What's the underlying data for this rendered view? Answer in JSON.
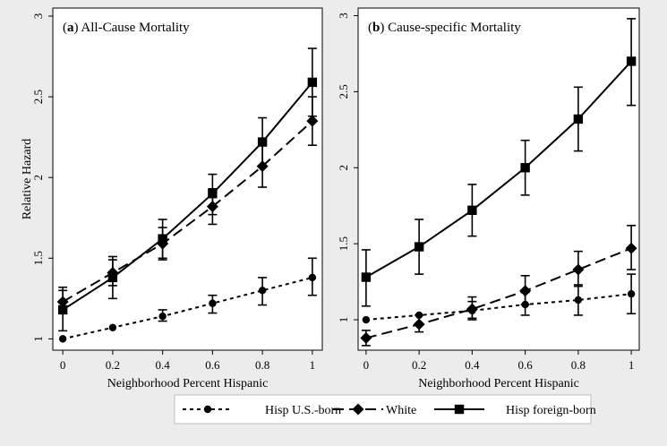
{
  "y_label": "Relative Hazard",
  "colors": {
    "page_bg": "#ececec",
    "plot_bg": "#ffffff",
    "ink": "#000000"
  },
  "legend": [
    {
      "label": "Hisp U.S.-born",
      "marker": "circle",
      "dash": "short-dash"
    },
    {
      "label": "White",
      "marker": "diamond",
      "dash": "long-dash"
    },
    {
      "label": "Hisp foreign-born",
      "marker": "square",
      "dash": "solid"
    }
  ],
  "chart_data": [
    {
      "type": "line",
      "title": "(a) All-Cause Mortality",
      "title_bold_part": "a",
      "xlabel": "Neighborhood Percent Hispanic",
      "ylabel": "Relative Hazard",
      "x": [
        0,
        0.2,
        0.4,
        0.6,
        0.8,
        1
      ],
      "x_ticks": [
        "0",
        "0.2",
        "0.4",
        "0.6",
        "0.8",
        "1"
      ],
      "y_ticks": [
        "1",
        "1.5",
        "2",
        "2.5",
        "3"
      ],
      "y_tick_values": [
        1,
        1.5,
        2,
        2.5,
        3
      ],
      "xlim": [
        -0.04,
        1.04
      ],
      "ylim": [
        0.93,
        3.05
      ],
      "series": [
        {
          "name": "Hisp U.S.-born",
          "marker": "circle",
          "dash": "short-dash",
          "values": [
            1.0,
            1.07,
            1.14,
            1.22,
            1.3,
            1.38
          ],
          "lower": [
            null,
            null,
            1.11,
            1.16,
            1.21,
            1.27
          ],
          "upper": [
            null,
            null,
            1.18,
            1.27,
            1.38,
            1.5
          ]
        },
        {
          "name": "White",
          "marker": "diamond",
          "dash": "long-dash",
          "values": [
            1.23,
            1.41,
            1.59,
            1.82,
            2.07,
            2.35
          ],
          "lower": [
            1.16,
            1.33,
            1.49,
            1.71,
            1.94,
            2.2
          ],
          "upper": [
            1.3,
            1.49,
            1.69,
            1.93,
            2.2,
            2.5
          ]
        },
        {
          "name": "Hisp foreign-born",
          "marker": "square",
          "dash": "solid",
          "values": [
            1.18,
            1.38,
            1.62,
            1.9,
            2.22,
            2.59
          ],
          "lower": [
            1.05,
            1.25,
            1.5,
            1.77,
            2.07,
            2.38
          ],
          "upper": [
            1.32,
            1.51,
            1.74,
            2.02,
            2.37,
            2.8
          ]
        }
      ]
    },
    {
      "type": "line",
      "title": "(b) Cause-specific Mortality",
      "title_bold_part": "b",
      "xlabel": "Neighborhood Percent Hispanic",
      "ylabel": "",
      "x": [
        0,
        0.2,
        0.4,
        0.6,
        0.8,
        1
      ],
      "x_ticks": [
        "0",
        "0.2",
        "0.4",
        "0.6",
        "0.8",
        "1"
      ],
      "y_ticks": [
        "1",
        "1.5",
        "2",
        "2.5",
        "3"
      ],
      "y_tick_values": [
        1,
        1.5,
        2,
        2.5,
        3
      ],
      "xlim": [
        -0.03,
        1.03
      ],
      "ylim": [
        0.8,
        3.05
      ],
      "series": [
        {
          "name": "Hisp U.S.-born",
          "marker": "circle",
          "dash": "short-dash",
          "values": [
            1.0,
            1.03,
            1.06,
            1.1,
            1.13,
            1.17
          ],
          "lower": [
            null,
            null,
            1.01,
            1.03,
            1.03,
            1.04
          ],
          "upper": [
            null,
            null,
            1.12,
            1.18,
            1.23,
            1.3
          ]
        },
        {
          "name": "White",
          "marker": "diamond",
          "dash": "long-dash",
          "values": [
            0.88,
            0.97,
            1.07,
            1.19,
            1.33,
            1.47
          ],
          "lower": [
            0.83,
            0.92,
            1.0,
            1.1,
            1.22,
            1.33
          ],
          "upper": [
            0.93,
            1.03,
            1.15,
            1.29,
            1.45,
            1.62
          ]
        },
        {
          "name": "Hisp foreign-born",
          "marker": "square",
          "dash": "solid",
          "values": [
            1.28,
            1.48,
            1.72,
            2.0,
            2.32,
            2.7
          ],
          "lower": [
            1.09,
            1.3,
            1.55,
            1.82,
            2.11,
            2.41
          ],
          "upper": [
            1.46,
            1.66,
            1.89,
            2.18,
            2.53,
            2.98
          ]
        }
      ]
    }
  ]
}
